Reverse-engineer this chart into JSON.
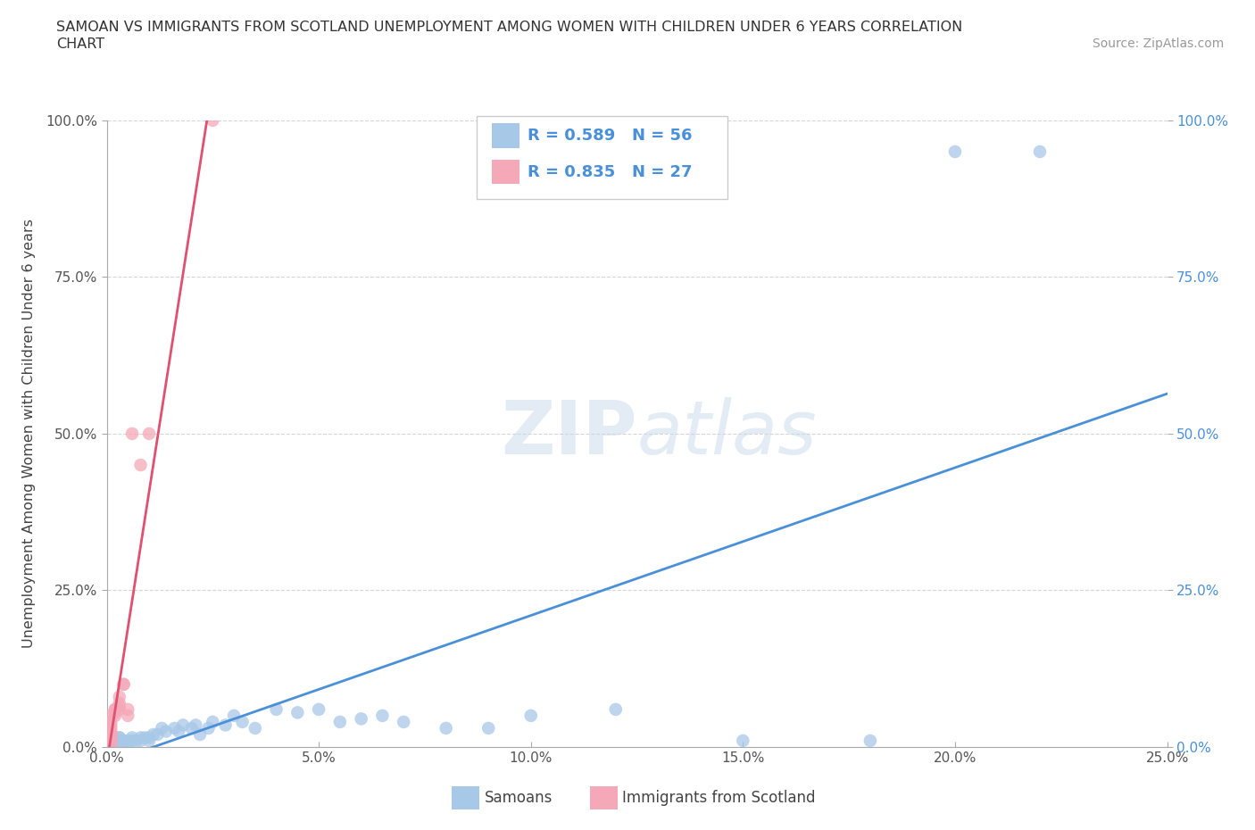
{
  "title_line1": "SAMOAN VS IMMIGRANTS FROM SCOTLAND UNEMPLOYMENT AMONG WOMEN WITH CHILDREN UNDER 6 YEARS CORRELATION",
  "title_line2": "CHART",
  "source_text": "Source: ZipAtlas.com",
  "watermark_zip": "ZIP",
  "watermark_atlas": "atlas",
  "ylabel": "Unemployment Among Women with Children Under 6 years",
  "xlim": [
    0.0,
    0.25
  ],
  "ylim": [
    0.0,
    1.0
  ],
  "xticks": [
    0.0,
    0.05,
    0.1,
    0.15,
    0.2,
    0.25
  ],
  "xtick_labels": [
    "0.0%",
    "5.0%",
    "10.0%",
    "15.0%",
    "20.0%",
    "25.0%"
  ],
  "yticks": [
    0.0,
    0.25,
    0.5,
    0.75,
    1.0
  ],
  "ytick_labels_left": [
    "0.0%",
    "25.0%",
    "50.0%",
    "75.0%",
    "100.0%"
  ],
  "ytick_labels_right": [
    "0.0%",
    "25.0%",
    "50.0%",
    "75.0%",
    "100.0%"
  ],
  "samoan_color": "#a8c8e8",
  "scotland_color": "#f4a8b8",
  "samoan_line_color": "#4a90d9",
  "scotland_line_color": "#e05070",
  "R_samoan": 0.589,
  "N_samoan": 56,
  "R_scotland": 0.835,
  "N_scotland": 27,
  "samoan_x": [
    0.001,
    0.001,
    0.001,
    0.001,
    0.001,
    0.001,
    0.001,
    0.002,
    0.002,
    0.002,
    0.003,
    0.003,
    0.003,
    0.004,
    0.004,
    0.005,
    0.005,
    0.006,
    0.006,
    0.007,
    0.008,
    0.008,
    0.009,
    0.01,
    0.01,
    0.011,
    0.012,
    0.013,
    0.014,
    0.016,
    0.017,
    0.018,
    0.02,
    0.021,
    0.022,
    0.024,
    0.025,
    0.028,
    0.03,
    0.032,
    0.035,
    0.04,
    0.045,
    0.05,
    0.055,
    0.06,
    0.065,
    0.07,
    0.08,
    0.09,
    0.1,
    0.12,
    0.15,
    0.18,
    0.2,
    0.22
  ],
  "samoan_y": [
    0.005,
    0.005,
    0.005,
    0.005,
    0.01,
    0.01,
    0.01,
    0.01,
    0.01,
    0.01,
    0.01,
    0.015,
    0.015,
    0.005,
    0.01,
    0.005,
    0.01,
    0.01,
    0.015,
    0.01,
    0.01,
    0.015,
    0.015,
    0.01,
    0.015,
    0.02,
    0.02,
    0.03,
    0.025,
    0.03,
    0.025,
    0.035,
    0.03,
    0.035,
    0.02,
    0.03,
    0.04,
    0.035,
    0.05,
    0.04,
    0.03,
    0.06,
    0.055,
    0.06,
    0.04,
    0.045,
    0.05,
    0.04,
    0.03,
    0.03,
    0.05,
    0.06,
    0.01,
    0.01,
    0.95,
    0.95
  ],
  "scotland_x": [
    0.001,
    0.001,
    0.001,
    0.001,
    0.001,
    0.001,
    0.001,
    0.001,
    0.001,
    0.001,
    0.001,
    0.002,
    0.002,
    0.002,
    0.002,
    0.003,
    0.003,
    0.003,
    0.003,
    0.004,
    0.004,
    0.005,
    0.005,
    0.006,
    0.008,
    0.01,
    0.025
  ],
  "scotland_y": [
    0.005,
    0.01,
    0.01,
    0.015,
    0.02,
    0.02,
    0.025,
    0.03,
    0.035,
    0.04,
    0.05,
    0.05,
    0.055,
    0.06,
    0.06,
    0.06,
    0.065,
    0.07,
    0.08,
    0.1,
    0.1,
    0.06,
    0.05,
    0.5,
    0.45,
    0.5,
    1.0
  ],
  "background_color": "#ffffff",
  "grid_color": "#cccccc",
  "title_color": "#333333",
  "axis_label_color": "#444444",
  "left_tick_color": "#555555",
  "right_tick_color": "#4a90d9",
  "bottom_tick_color": "#555555"
}
